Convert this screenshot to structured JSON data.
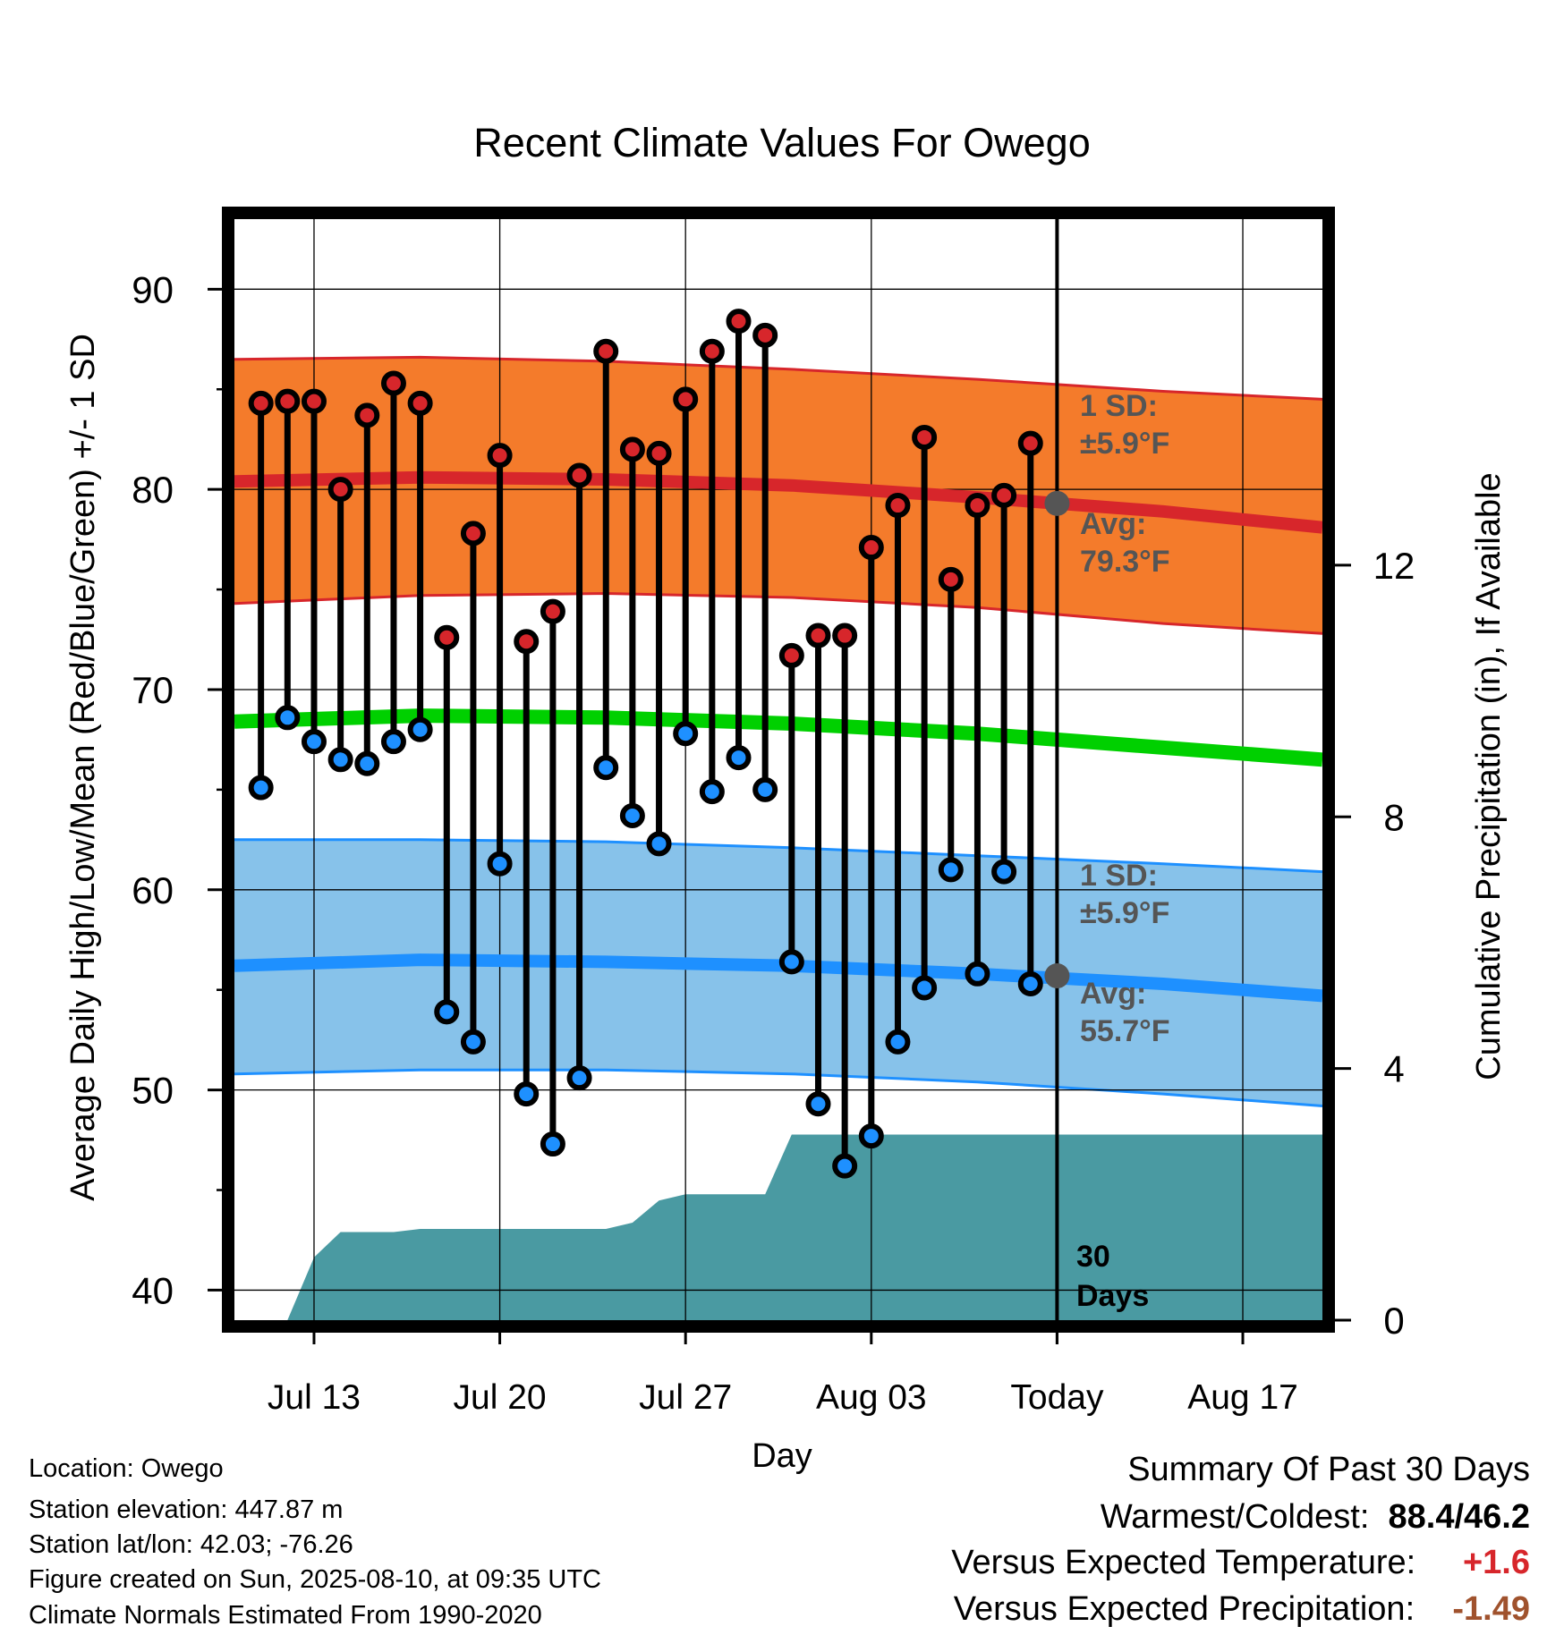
{
  "chart_data": {
    "type": "line",
    "title": "Recent Climate Values For Owego",
    "xlabel": "Day",
    "ylabel": "Average Daily High/Low/Mean (Red/Blue/Green) +/- 1 SD",
    "y2label": "Cumulative Precipitation (in), If Available",
    "ylim": [
      38.5,
      93.5
    ],
    "y2lim": [
      0,
      17.5
    ],
    "y_ticks": [
      40,
      50,
      60,
      70,
      80,
      90
    ],
    "y2_ticks": [
      0,
      4,
      8,
      12
    ],
    "x_tick_labels": [
      "Jul 13",
      "Jul 20",
      "Jul 27",
      "Aug 03",
      "Today",
      "Aug 17"
    ],
    "x_range": [
      "2025-07-10",
      "2025-08-20"
    ],
    "grid": true,
    "today": "2025-08-10",
    "days": [
      "2025-07-11",
      "2025-07-12",
      "2025-07-13",
      "2025-07-14",
      "2025-07-15",
      "2025-07-16",
      "2025-07-17",
      "2025-07-18",
      "2025-07-19",
      "2025-07-20",
      "2025-07-21",
      "2025-07-22",
      "2025-07-23",
      "2025-07-24",
      "2025-07-25",
      "2025-07-26",
      "2025-07-27",
      "2025-07-28",
      "2025-07-29",
      "2025-07-30",
      "2025-07-31",
      "2025-08-01",
      "2025-08-02",
      "2025-08-03",
      "2025-08-04",
      "2025-08-05",
      "2025-08-06",
      "2025-08-07",
      "2025-08-08",
      "2025-08-09"
    ],
    "series": [
      {
        "name": "High",
        "color": "#d7262b",
        "values": [
          84.3,
          84.4,
          84.4,
          80.0,
          83.7,
          85.3,
          84.3,
          72.6,
          77.8,
          81.7,
          72.4,
          73.9,
          80.7,
          86.9,
          82.0,
          81.8,
          84.5,
          86.9,
          88.4,
          87.7,
          71.7,
          72.7,
          72.7,
          77.1,
          79.2,
          82.6,
          75.5,
          79.2,
          79.7,
          82.3
        ]
      },
      {
        "name": "Low",
        "color": "#1e90ff",
        "values": [
          65.1,
          68.6,
          67.4,
          66.5,
          66.3,
          67.4,
          68.0,
          53.9,
          52.4,
          61.3,
          49.8,
          47.3,
          50.6,
          66.1,
          63.7,
          62.3,
          67.8,
          64.9,
          66.6,
          65.0,
          56.4,
          49.3,
          46.2,
          47.7,
          52.4,
          55.1,
          61.0,
          55.8,
          60.9,
          55.3
        ]
      }
    ],
    "normals": {
      "days": [
        "2025-07-10",
        "2025-07-17",
        "2025-07-24",
        "2025-07-31",
        "2025-08-07",
        "2025-08-14",
        "2025-08-20"
      ],
      "high_avg": [
        80.4,
        80.6,
        80.5,
        80.2,
        79.6,
        78.9,
        78.1
      ],
      "high_sd_upper": [
        86.5,
        86.6,
        86.4,
        86.0,
        85.5,
        84.9,
        84.5
      ],
      "high_sd_lower": [
        74.3,
        74.7,
        74.8,
        74.6,
        74.1,
        73.3,
        72.8
      ],
      "mean_avg": [
        68.4,
        68.7,
        68.6,
        68.3,
        67.8,
        67.1,
        66.5
      ],
      "low_avg": [
        56.2,
        56.5,
        56.4,
        56.2,
        55.8,
        55.3,
        54.7
      ],
      "low_sd_upper": [
        62.5,
        62.5,
        62.4,
        62.1,
        61.7,
        61.3,
        60.9
      ],
      "low_sd_lower": [
        50.8,
        51.0,
        51.0,
        50.8,
        50.4,
        49.8,
        49.2
      ]
    },
    "precip_cumulative": {
      "days": [
        "2025-07-12",
        "2025-07-13",
        "2025-07-14",
        "2025-07-15",
        "2025-07-16",
        "2025-07-17",
        "2025-07-24",
        "2025-07-25",
        "2025-07-26",
        "2025-07-27",
        "2025-07-30",
        "2025-07-31",
        "2025-08-20"
      ],
      "values": [
        0.0,
        1.0,
        1.4,
        1.4,
        1.4,
        1.45,
        1.45,
        1.55,
        1.9,
        2.0,
        2.0,
        2.95,
        2.95
      ]
    },
    "colors": {
      "high_band": "#f47b2b",
      "high_line": "#d7262b",
      "low_band": "#87c2ea",
      "low_line": "#1e90ff",
      "mean_line": "#00d000",
      "precip": "#4a9aa2",
      "annotation": "#555555"
    },
    "annotations": {
      "high_sd_label": "1 SD:",
      "high_sd_value": "±5.9°F",
      "high_avg_label": "Avg:",
      "high_avg_value": "79.3°F",
      "low_sd_label": "1 SD:",
      "low_sd_value": "±5.9°F",
      "low_avg_label": "Avg:",
      "low_avg_value": "55.7°F",
      "precip_period_line1": "30",
      "precip_period_line2": "Days"
    }
  },
  "station_info": {
    "location": "Location: Owego",
    "elevation": "Station elevation: 447.87 m",
    "latlon": "Station lat/lon: 42.03; -76.26",
    "created": "Figure created on Sun, 2025-08-10, at 09:35 UTC",
    "normals_period": "Climate Normals Estimated From 1990-2020"
  },
  "summary": {
    "heading": "Summary Of Past 30 Days",
    "warm_cold_label": "Warmest/Coldest:",
    "warm_cold_value": "88.4/46.2",
    "temp_label": "Versus Expected Temperature:",
    "temp_value": "+1.6",
    "temp_color": "#d7262b",
    "precip_label": "Versus Expected Precipitation:",
    "precip_value": "-1.49",
    "precip_color": "#a0522d"
  }
}
